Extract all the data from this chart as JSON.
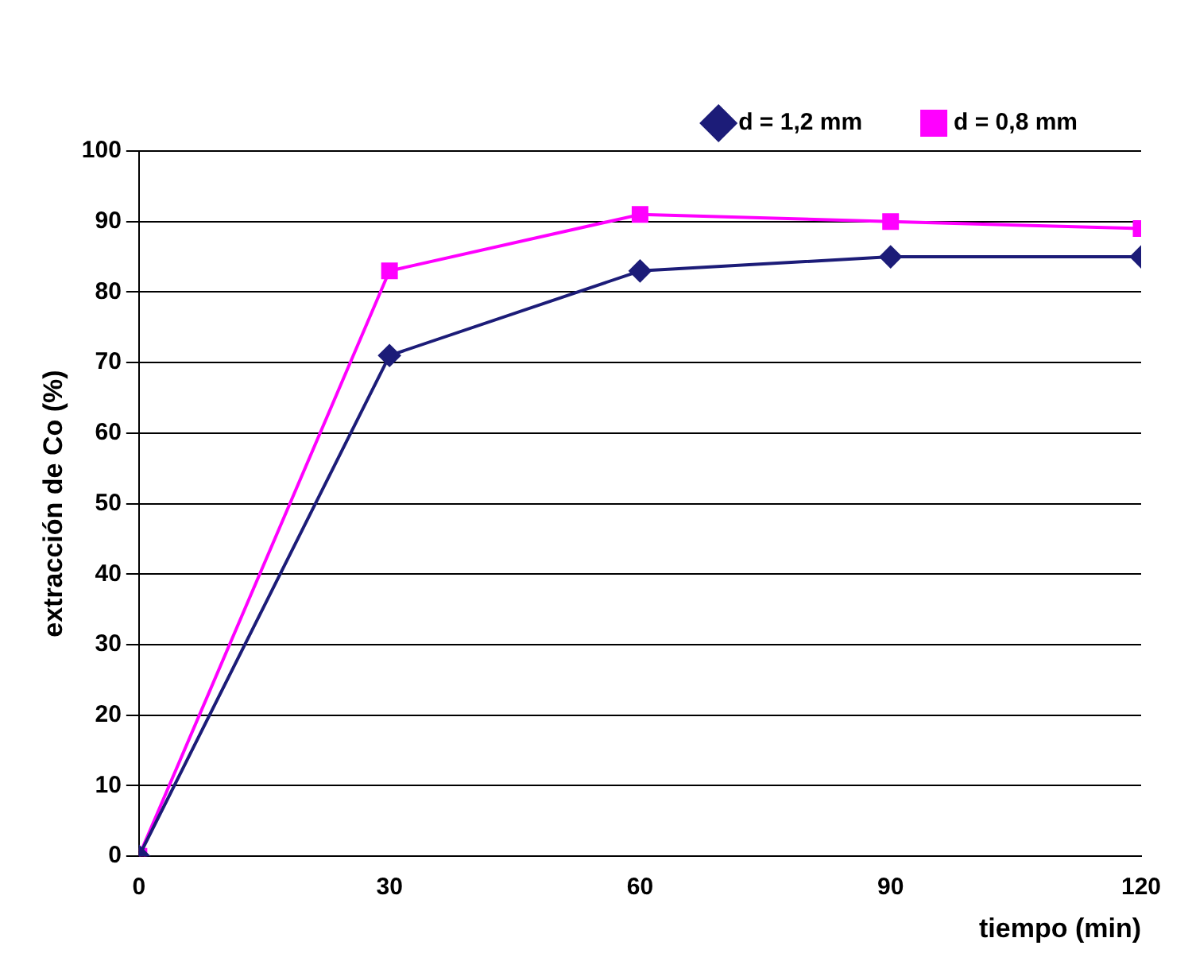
{
  "chart_data": {
    "type": "line",
    "xlabel": "tiempo (min)",
    "ylabel": "extracción de Co (%)",
    "x": [
      0,
      30,
      60,
      90,
      120
    ],
    "series": [
      {
        "name": "d = 1,2 mm",
        "color": "#1c1c78",
        "values": [
          0,
          71,
          83,
          85,
          85
        ],
        "marker": "diamond"
      },
      {
        "name": "d = 0,8 mm",
        "color": "#ff00ff",
        "values": [
          0,
          83,
          91,
          90,
          89
        ],
        "marker": "square"
      }
    ],
    "xlim": [
      0,
      120
    ],
    "xticks": [
      0,
      30,
      60,
      90,
      120
    ],
    "ylim": [
      0,
      100
    ],
    "yticks": [
      0,
      10,
      20,
      30,
      40,
      50,
      60,
      70,
      80,
      90,
      100
    ],
    "grid": "y",
    "legend": "top right"
  }
}
